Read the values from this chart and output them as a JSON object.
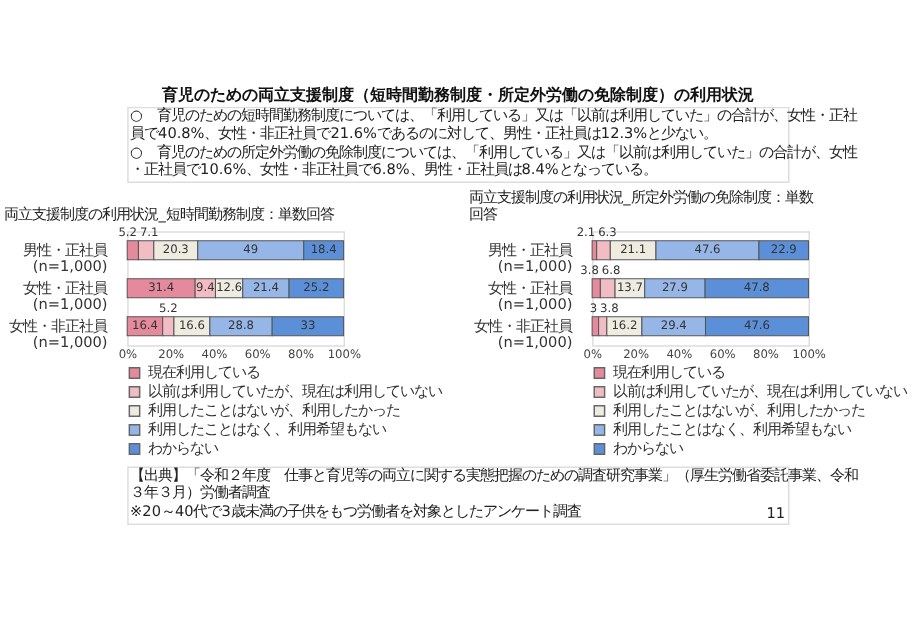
{
  "chart_data": [
    {
      "type": "other",
      "title": "育児のための両立支援制度（短時間勤務制度・所定外労働の免除制度）の利用状況",
      "annotations": [
        "○　育児のための短時間勤務制度については、「利用している」又は「以前は利用していた」の合計が、女性・正社員で40.8%、女性・非正社員で21.6%であるのに対して、男性・正社員は12.3%と少ない。",
        "○　育児のための所定外労働の免除制度については、「利用している」又は「以前は利用していた」の合計が、女性・正社員で10.6%、女性・非正社員で6.8%、男性・正社員は8.4%となっている。"
      ]
    },
    {
      "type": "bar",
      "orientation": "horizontal",
      "stacked": true,
      "title": "両立支援制度の利用状況_短時間勤務制度：単数回答",
      "categories": [
        "男性・正社員\n(n=1,000)",
        "女性・正社員\n(n=1,000)",
        "女性・非正社員\n(n=1,000)"
      ],
      "series": [
        {
          "name": "現在利用している",
          "color": "#e58a9c",
          "values": [
            5.2,
            31.4,
            16.4
          ]
        },
        {
          "name": "以前は利用していたが、現在は利用していない",
          "color": "#f2bcc5",
          "values": [
            7.1,
            9.4,
            5.2
          ]
        },
        {
          "name": "利用したことはないが、利用したかった",
          "color": "#eeece1",
          "values": [
            20.3,
            12.6,
            16.6
          ]
        },
        {
          "name": "利用したことはなく、利用希望もない",
          "color": "#95b6e6",
          "values": [
            49,
            21.4,
            28.8
          ]
        },
        {
          "name": "わからない",
          "color": "#5b8fd8",
          "values": [
            18.4,
            25.2,
            33
          ]
        }
      ],
      "xlim": [
        0,
        100
      ],
      "xticks": [
        {
          "value": 0,
          "label": "0%"
        },
        {
          "value": 20,
          "label": "20%"
        },
        {
          "value": 40,
          "label": "40%"
        },
        {
          "value": 60,
          "label": "60%"
        },
        {
          "value": 80,
          "label": "80%"
        },
        {
          "value": 100,
          "label": "100%"
        }
      ],
      "data_labels": true,
      "legend": "bottom"
    },
    {
      "type": "bar",
      "orientation": "horizontal",
      "stacked": true,
      "title": "両立支援制度の利用状況_所定外労働の免除制度：単数回答",
      "categories": [
        "男性・正社員\n(n=1,000)",
        "女性・正社員\n(n=1,000)",
        "女性・非正社員\n(n=1,000)"
      ],
      "series": [
        {
          "name": "現在利用している",
          "color": "#e58a9c",
          "values": [
            2.1,
            3.8,
            3
          ]
        },
        {
          "name": "以前は利用していたが、現在は利用していない",
          "color": "#f2bcc5",
          "values": [
            6.3,
            6.8,
            3.8
          ]
        },
        {
          "name": "利用したことはないが、利用したかった",
          "color": "#eeece1",
          "values": [
            21.1,
            13.7,
            16.2
          ]
        },
        {
          "name": "利用したことはなく、利用希望もない",
          "color": "#95b6e6",
          "values": [
            47.6,
            27.9,
            29.4
          ]
        },
        {
          "name": "わからない",
          "color": "#5b8fd8",
          "values": [
            22.9,
            47.8,
            47.6
          ]
        }
      ],
      "xlim": [
        0,
        100
      ],
      "xticks": [
        {
          "value": 0,
          "label": "0%"
        },
        {
          "value": 20,
          "label": "20%"
        },
        {
          "value": 40,
          "label": "40%"
        },
        {
          "value": 60,
          "label": "60%"
        },
        {
          "value": 80,
          "label": "80%"
        },
        {
          "value": 100,
          "label": "100%"
        }
      ],
      "data_labels": true,
      "legend": "bottom"
    },
    {
      "type": "other",
      "annotations": [
        "【出典】「令和２年度　仕事と育児等の両立に関する実態把握のための調査研究事業」（厚生労働省委託事業、令和３年３月）労働者調査",
        "※20～40代で3歳未満の子供をもつ労働者を対象としたアンケート調査",
        "11"
      ]
    }
  ]
}
